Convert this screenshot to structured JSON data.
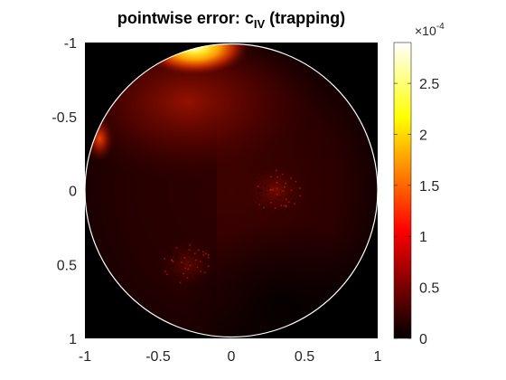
{
  "chart_data": {
    "type": "heatmap",
    "title": {
      "main": "pointwise error: c",
      "subscript": "IV",
      "suffix": "(trapping)"
    },
    "xlim": [
      -1,
      1
    ],
    "ylim": [
      -1,
      1
    ],
    "y_direction": "reversed",
    "x_ticks": [
      -1,
      -0.5,
      0,
      0.5,
      1
    ],
    "x_tick_labels": [
      "-1",
      "-0.5",
      "0",
      "0.5",
      "1"
    ],
    "y_ticks": [
      -1,
      -0.5,
      0,
      0.5,
      1
    ],
    "y_tick_labels": [
      "-1",
      "-0.5",
      "0",
      "0.5",
      "1"
    ],
    "domain": {
      "shape": "circle",
      "center": [
        0,
        0
      ],
      "radius": 1,
      "outline_color": "#ffffff"
    },
    "colormap": "hot",
    "background_color": "#000000",
    "colorbar": {
      "range": [
        0,
        2.9
      ],
      "scale_label": "×10",
      "scale_exponent": "-4",
      "ticks": [
        0,
        0.5,
        1,
        1.5,
        2,
        2.5
      ],
      "tick_labels": [
        "0",
        "0.5",
        "1",
        "1.5",
        "2",
        "2.5"
      ]
    },
    "features": [
      {
        "description": "peak error near top boundary",
        "x": -0.25,
        "y": -0.97,
        "value": 2.9
      },
      {
        "description": "secondary maximum at left boundary",
        "x": -0.9,
        "y": -0.35,
        "value": 0.9
      },
      {
        "description": "noisy patch",
        "x": 0.3,
        "y": 0.0,
        "value": 0.4
      },
      {
        "description": "noisy patch",
        "x": -0.3,
        "y": 0.5,
        "value": 0.3
      }
    ]
  }
}
